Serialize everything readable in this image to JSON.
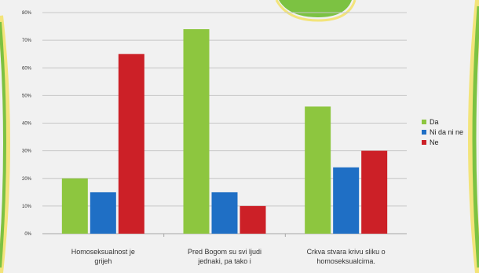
{
  "chart_data": {
    "type": "bar",
    "categories": [
      [
        "Homoseksualnost je",
        "grijeh"
      ],
      [
        "Pred Bogom su svi ljudi",
        "jednaki, pa tako i"
      ],
      [
        "Crkva stvara krivu sliku o",
        "homoseksualcima."
      ]
    ],
    "series": [
      {
        "name": "Da",
        "color": "#8dc63f",
        "values": [
          20,
          74,
          46
        ]
      },
      {
        "name": "Ni da ni ne",
        "color": "#1f6fc5",
        "values": [
          15,
          15,
          24
        ]
      },
      {
        "name": "Ne",
        "color": "#cc2027",
        "values": [
          65,
          10,
          30
        ]
      }
    ],
    "ylim": [
      0,
      80
    ],
    "yticks": [
      "0%",
      "10%",
      "20%",
      "30%",
      "40%",
      "50%",
      "60%",
      "70%",
      "80%"
    ],
    "grid": true,
    "legend": "right"
  },
  "colors": {
    "background": "#f1f1f1",
    "frame_green": "#7cc242",
    "frame_yellow": "#f3e47a"
  }
}
